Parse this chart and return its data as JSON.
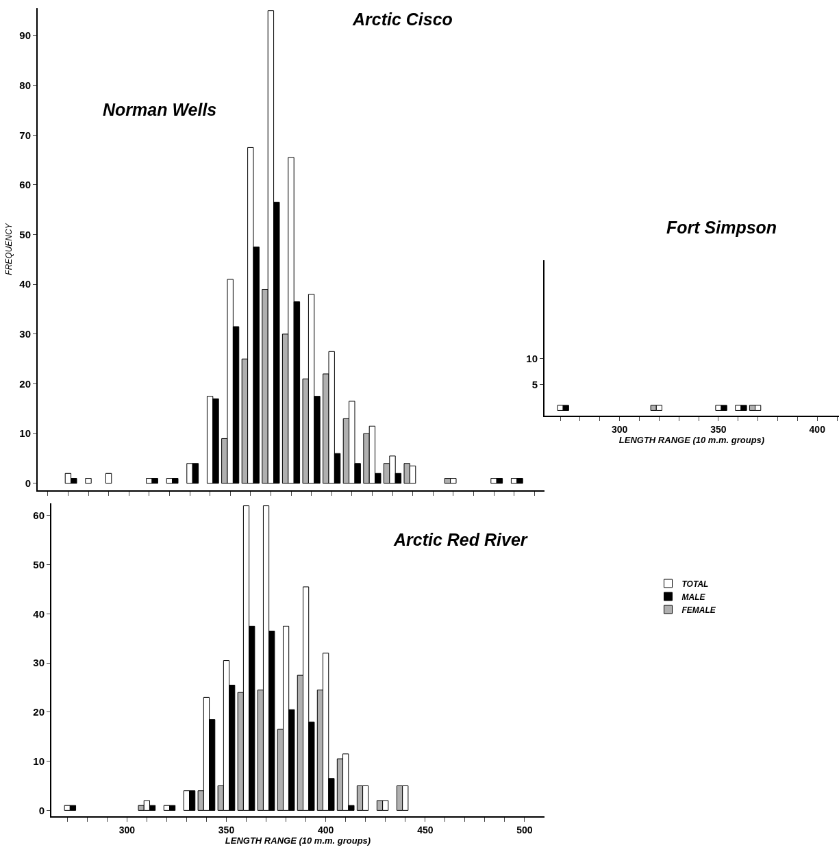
{
  "chart_data": [
    {
      "type": "bar",
      "title": "Arctic Cisco",
      "annotations": [
        "Norman Wells"
      ],
      "ylabel": "FREQUENCY",
      "categories": [
        null,
        null,
        null,
        null,
        null,
        null,
        null,
        null,
        null,
        null,
        null,
        null,
        null,
        null,
        null,
        null,
        null,
        null,
        null,
        null,
        null,
        null,
        null,
        null,
        null
      ],
      "series": [
        {
          "color": "#b0b0b0",
          "values": [
            0,
            0,
            0,
            0,
            0,
            0,
            0,
            0,
            0,
            9,
            25,
            39,
            30,
            21,
            22,
            13,
            10,
            4,
            4,
            0,
            1,
            0,
            0,
            0,
            0
          ]
        },
        {
          "color": "#ffffff",
          "values": [
            0,
            2,
            1,
            2,
            0,
            1,
            1,
            4,
            17.5,
            41,
            67.5,
            95,
            65.5,
            38,
            26.5,
            16.5,
            11.5,
            5.5,
            3.5,
            0,
            1,
            0,
            1,
            1,
            0
          ]
        },
        {
          "color": "#000000",
          "values": [
            0,
            1,
            0,
            0,
            0,
            1,
            1,
            4,
            17,
            31.5,
            47.5,
            56.5,
            36.5,
            17.5,
            6,
            4,
            2,
            2,
            0,
            0,
            0,
            0,
            1,
            1,
            0
          ]
        }
      ],
      "ylim": [
        -1.4,
        95.5
      ],
      "yticks": [
        0,
        10,
        20,
        30,
        40,
        50,
        60,
        70,
        80,
        90
      ],
      "tick_labels": "y"
    },
    {
      "type": "bar",
      "title": "Arctic Red River",
      "xlabel": "LENGTH RANGE (10 m.m. groups)",
      "x": [
        270,
        310,
        320,
        330,
        340,
        350,
        360,
        370,
        380,
        390,
        400,
        410,
        420,
        430,
        440
      ],
      "series": [
        {
          "name": "FEMALE",
          "color": "#b0b0b0",
          "values": [
            null,
            1,
            null,
            null,
            4,
            5,
            24,
            24.5,
            16.5,
            27.5,
            24.5,
            10.5,
            5,
            2,
            5
          ]
        },
        {
          "name": "TOTAL",
          "color": "#ffffff",
          "values": [
            1,
            2,
            1,
            4,
            23,
            30.5,
            62,
            62,
            37.5,
            45.5,
            32,
            11.5,
            5,
            2,
            5
          ]
        },
        {
          "name": "MALE",
          "color": "#000000",
          "values": [
            1,
            1,
            1,
            4,
            18.5,
            25.5,
            37.5,
            36.5,
            20.5,
            18,
            6.5,
            1,
            null,
            null,
            null
          ]
        }
      ],
      "xlim": [
        262,
        510
      ],
      "xticks": [
        {
          "value": 270,
          "label": null
        },
        {
          "value": 280,
          "label": null
        },
        {
          "value": 290,
          "label": null
        },
        300,
        {
          "value": 310,
          "label": null
        },
        {
          "value": 320,
          "label": null
        },
        {
          "value": 330,
          "label": null
        },
        {
          "value": 340,
          "label": null
        },
        350,
        {
          "value": 360,
          "label": null
        },
        {
          "value": 370,
          "label": null
        },
        {
          "value": 380,
          "label": null
        },
        {
          "value": 390,
          "label": null
        },
        400,
        {
          "value": 410,
          "label": null
        },
        {
          "value": 420,
          "label": null
        },
        {
          "value": 430,
          "label": null
        },
        {
          "value": 440,
          "label": null
        },
        450,
        {
          "value": 460,
          "label": null
        },
        {
          "value": 470,
          "label": null
        },
        {
          "value": 480,
          "label": null
        },
        {
          "value": 490,
          "label": null
        },
        500
      ],
      "ylim": [
        -1.2,
        62.5
      ],
      "yticks": [
        0,
        10,
        20,
        30,
        40,
        50,
        60
      ],
      "legend": "right"
    },
    {
      "type": "bar",
      "title": "Fort Simpson",
      "xlabel": "LENGTH RANGE (10 m.m. groups)",
      "x": [
        270,
        320,
        350,
        360,
        370
      ],
      "series": [
        {
          "color": "#b0b0b0",
          "values": [
            null,
            1,
            null,
            null,
            1
          ]
        },
        {
          "color": "#ffffff",
          "values": [
            1,
            1,
            1,
            1,
            1
          ]
        },
        {
          "color": "#000000",
          "values": [
            1,
            null,
            1,
            1,
            null
          ]
        }
      ],
      "xlim": [
        262,
        411
      ],
      "xticks": [
        {
          "value": 270,
          "label": null
        },
        {
          "value": 280,
          "label": null
        },
        {
          "value": 290,
          "label": null
        },
        300,
        {
          "value": 310,
          "label": null
        },
        {
          "value": 320,
          "label": null
        },
        {
          "value": 330,
          "label": null
        },
        {
          "value": 340,
          "label": null
        },
        350,
        {
          "value": 360,
          "label": null
        },
        {
          "value": 370,
          "label": null
        },
        {
          "value": 380,
          "label": null
        },
        {
          "value": 390,
          "label": null
        },
        400,
        {
          "value": 410,
          "label": null
        }
      ],
      "ylim": [
        -1,
        29
      ],
      "yticks": [
        5,
        10
      ]
    }
  ]
}
